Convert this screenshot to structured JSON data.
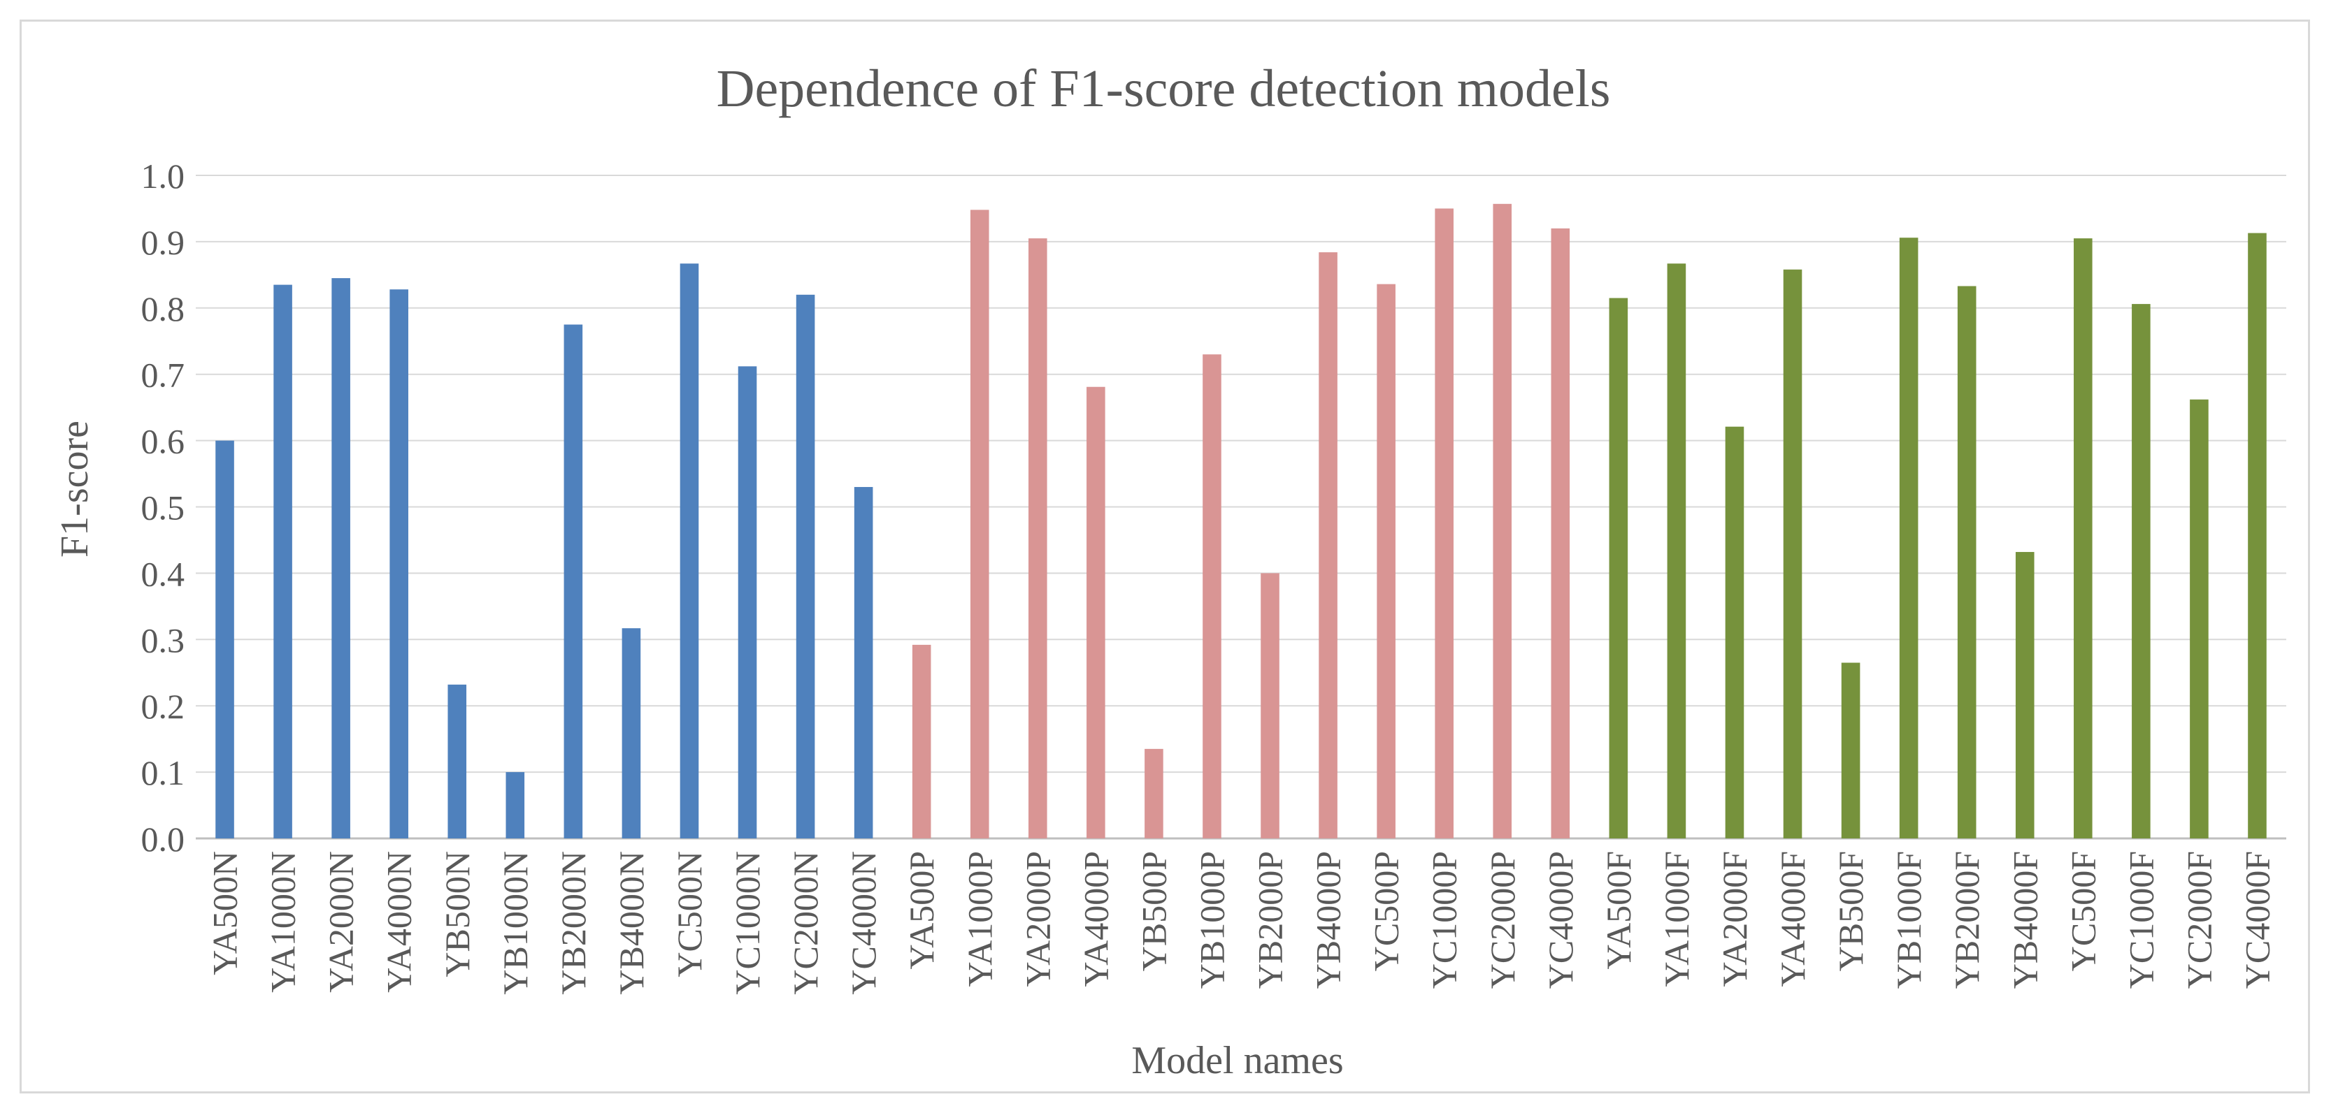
{
  "chart_data": {
    "type": "bar",
    "title": "Dependence of F1-score detection models",
    "xlabel": "Model names",
    "ylabel": "F1-score",
    "ylim": [
      0,
      1.0
    ],
    "ytick_step": 0.1,
    "y_ticks": [
      "0.0",
      "0.1",
      "0.2",
      "0.3",
      "0.4",
      "0.5",
      "0.6",
      "0.7",
      "0.8",
      "0.9",
      "1.0"
    ],
    "grid": true,
    "legend": "none",
    "categories": [
      "YA500N",
      "YA1000N",
      "YA2000N",
      "YA4000N",
      "YB500N",
      "YB1000N",
      "YB2000N",
      "YB4000N",
      "YC500N",
      "YC1000N",
      "YC2000N",
      "YC4000N",
      "YA500P",
      "YA1000P",
      "YA2000P",
      "YA4000P",
      "YB500P",
      "YB1000P",
      "YB2000P",
      "YB4000P",
      "YC500P",
      "YC1000P",
      "YC2000P",
      "YC4000P",
      "YA500F",
      "YA1000F",
      "YA2000F",
      "YA4000F",
      "YB500F",
      "YB1000F",
      "YB2000F",
      "YB4000F",
      "YC500F",
      "YC1000F",
      "YC2000F",
      "YC4000F"
    ],
    "values": [
      0.6,
      0.835,
      0.845,
      0.828,
      0.232,
      0.1,
      0.775,
      0.317,
      0.867,
      0.712,
      0.82,
      0.53,
      0.292,
      0.948,
      0.905,
      0.681,
      0.135,
      0.73,
      0.4,
      0.884,
      0.836,
      0.95,
      0.957,
      0.92,
      0.815,
      0.867,
      0.621,
      0.858,
      0.265,
      0.906,
      0.833,
      0.432,
      0.905,
      0.806,
      0.662,
      0.913
    ],
    "groups": [
      {
        "name": "N",
        "start": 0,
        "count": 12,
        "color": "#4f81bd"
      },
      {
        "name": "P",
        "start": 12,
        "count": 12,
        "color": "#d99594"
      },
      {
        "name": "F",
        "start": 24,
        "count": 12,
        "color": "#76923c"
      }
    ]
  }
}
